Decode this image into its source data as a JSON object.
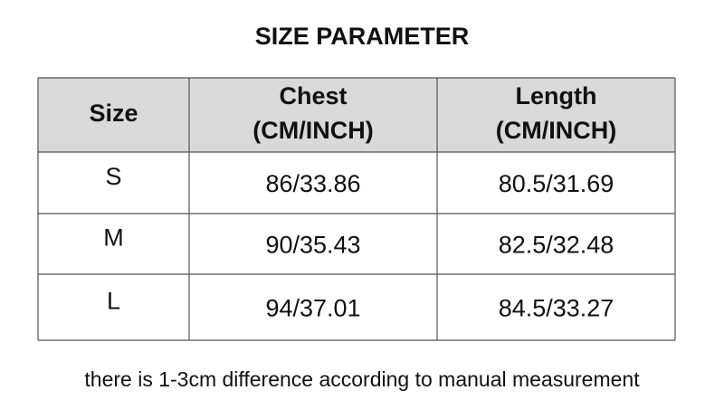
{
  "title": "SIZE PARAMETER",
  "table": {
    "header": [
      [
        "Size"
      ],
      [
        "Chest",
        "(CM/INCH)"
      ],
      [
        "Length",
        "(CM/INCH)"
      ]
    ],
    "rows": [
      [
        "S",
        "86/33.86",
        "80.5/31.69"
      ],
      [
        "M",
        "90/35.43",
        "82.5/32.48"
      ],
      [
        "L",
        "94/37.01",
        "84.5/33.27"
      ]
    ]
  },
  "note": "there is 1-3cm difference according to manual measurement"
}
